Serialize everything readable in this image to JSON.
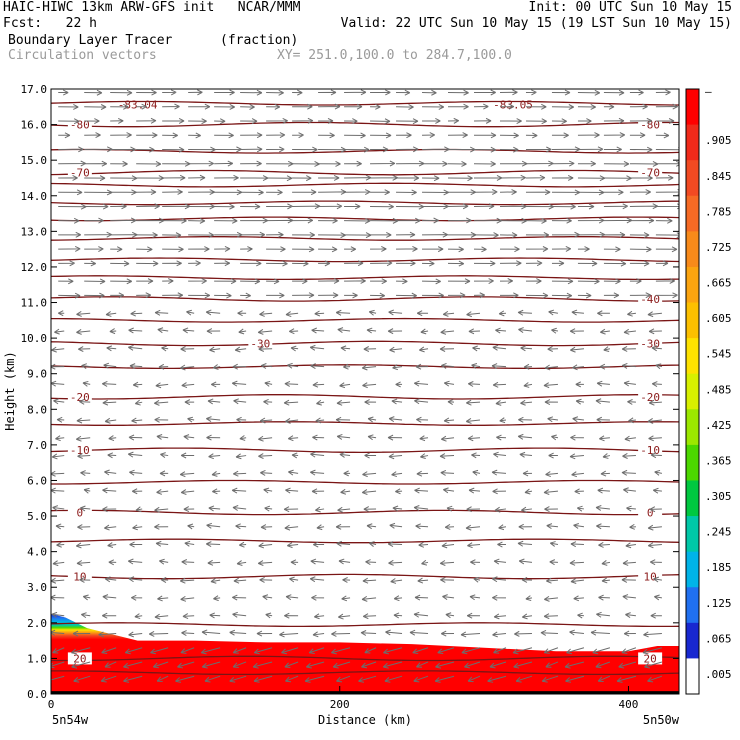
{
  "header": {
    "line1_left": "HAIC-HIWC 13km ARW-GFS init   NCAR/MMM",
    "line1_right": "Init: 00 UTC Sun 10 May 15",
    "line2_left": "Fcst:   22 h",
    "line2_right": "Valid: 22 UTC Sun 10 May 15 (19 LST Sun 10 May 15)",
    "line3_left": "Boundary Layer Tracer",
    "line3_unit": "(fraction)",
    "line4_left": "Circulation vectors",
    "line4_right": "XY= 251.0,100.0 to 284.7,100.0"
  },
  "chart_data": {
    "type": "heatmap",
    "xlabel": "Distance (km)",
    "ylabel": "Height (km)",
    "xlim": [
      0,
      435
    ],
    "ylim": [
      0,
      17
    ],
    "x_ticks": [
      0,
      200,
      400
    ],
    "y_ticks": [
      "0.0",
      "1.0",
      "2.0",
      "3.0",
      "4.0",
      "5.0",
      "6.0",
      "7.0",
      "8.0",
      "9.0",
      "10.0",
      "11.0",
      "12.0",
      "13.0",
      "14.0",
      "15.0",
      "16.0",
      "17.0"
    ],
    "endpoints": {
      "left": "5n54w",
      "right": "5n50w"
    },
    "colorbar": {
      "labels": [
        "–",
        ".905",
        ".845",
        ".785",
        ".725",
        ".665",
        ".605",
        ".545",
        ".485",
        ".425",
        ".365",
        ".305",
        ".245",
        ".185",
        ".125",
        ".065",
        ".005"
      ],
      "colors": [
        "#ff0000",
        "#f02a1a",
        "#f24a22",
        "#f66a24",
        "#f88a1a",
        "#fba410",
        "#fcc000",
        "#fee200",
        "#d8f000",
        "#9ce800",
        "#4cd800",
        "#00c840",
        "#00c8a8",
        "#00b4e8",
        "#2070f0",
        "#1828d0",
        "#ffffff"
      ]
    },
    "tracer_top_km": [
      [
        0,
        2.25
      ],
      [
        10,
        2.15
      ],
      [
        25,
        1.85
      ],
      [
        40,
        1.7
      ],
      [
        60,
        1.5
      ],
      [
        100,
        1.5
      ],
      [
        150,
        1.45
      ],
      [
        200,
        1.45
      ],
      [
        250,
        1.4
      ],
      [
        300,
        1.3
      ],
      [
        350,
        1.2
      ],
      [
        400,
        1.2
      ],
      [
        420,
        1.35
      ],
      [
        435,
        1.35
      ]
    ],
    "temperature_isotherms": [
      {
        "label": "-83.04",
        "height_km": 16.85,
        "x_km": 60
      },
      {
        "label": "-83.05",
        "height_km": 16.85,
        "x_km": 320
      },
      {
        "label": "-80",
        "height_km": 16.0
      },
      {
        "label": "-70",
        "height_km": 14.65
      },
      {
        "label": "-40",
        "height_km": 11.1
      },
      {
        "label": "-30",
        "height_km": 9.85
      },
      {
        "label": "-20",
        "height_km": 8.35
      },
      {
        "label": "-10",
        "height_km": 6.85
      },
      {
        "label": "0",
        "height_km": 5.1
      },
      {
        "label": "10",
        "height_km": 3.3
      },
      {
        "label": "20",
        "height_km": 1.0
      }
    ],
    "minor_isotherm_heights_km": [
      16.6,
      15.25,
      14.3,
      13.8,
      13.35,
      12.8,
      12.2,
      11.7,
      10.5,
      9.2,
      7.6,
      5.95,
      4.3,
      1.95,
      0.6
    ],
    "vectors": {
      "upper_levels_km": [
        16.9,
        16.5,
        16.1,
        15.7,
        15.3,
        14.9,
        14.5,
        14.1,
        13.7,
        13.3,
        12.9,
        12.5,
        12.1,
        11.6,
        11.2
      ],
      "upper_direction": "east",
      "lower_direction": "west",
      "lower_levels_km": [
        10.7,
        10.2,
        9.7,
        9.2,
        8.7,
        8.2,
        7.7,
        7.2,
        6.7,
        6.2,
        5.7,
        5.2,
        4.7,
        4.2,
        3.7,
        3.2,
        2.7,
        2.2,
        1.7,
        1.3,
        0.9,
        0.5
      ]
    }
  }
}
